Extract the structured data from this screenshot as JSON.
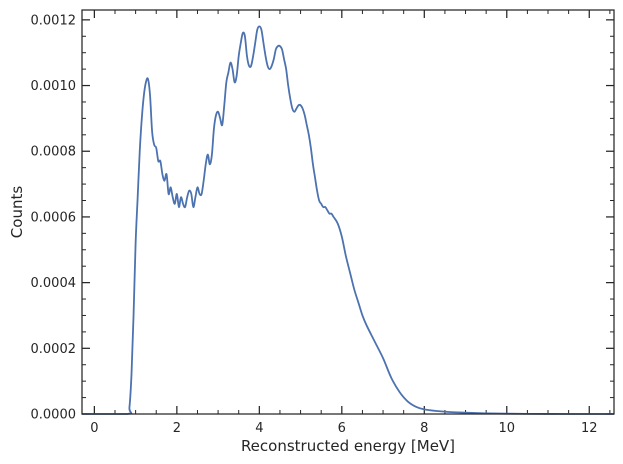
{
  "chart_data": {
    "type": "line",
    "title": "",
    "xlabel": "Reconstructed energy [MeV]",
    "ylabel": "Counts",
    "xlim": [
      -0.3,
      12.6
    ],
    "ylim": [
      0,
      0.00123
    ],
    "xticks": [
      0,
      2,
      4,
      6,
      8,
      10,
      12
    ],
    "xtick_labels": [
      "0",
      "2",
      "4",
      "6",
      "8",
      "10",
      "12"
    ],
    "yticks": [
      0,
      0.0002,
      0.0004,
      0.0006,
      0.0008,
      0.001,
      0.0012
    ],
    "ytick_labels": [
      "0.0000",
      "0.0002",
      "0.0004",
      "0.0006",
      "0.0008",
      "0.0010",
      "0.0012"
    ],
    "grid": false,
    "line_color": "#4c72b0",
    "series": [
      {
        "x": [
          -0.3,
          0.8,
          0.85,
          0.9,
          0.95,
          1.0,
          1.05,
          1.1,
          1.15,
          1.2,
          1.25,
          1.3,
          1.35,
          1.4,
          1.45,
          1.5,
          1.55,
          1.6,
          1.65,
          1.7,
          1.75,
          1.8,
          1.85,
          1.9,
          1.95,
          2.0,
          2.05,
          2.1,
          2.15,
          2.2,
          2.25,
          2.3,
          2.35,
          2.4,
          2.45,
          2.5,
          2.55,
          2.6,
          2.65,
          2.7,
          2.75,
          2.8,
          2.85,
          2.9,
          2.95,
          3.0,
          3.05,
          3.1,
          3.15,
          3.2,
          3.25,
          3.3,
          3.35,
          3.4,
          3.45,
          3.5,
          3.55,
          3.6,
          3.65,
          3.7,
          3.75,
          3.8,
          3.85,
          3.9,
          3.95,
          4.0,
          4.05,
          4.1,
          4.15,
          4.2,
          4.25,
          4.3,
          4.35,
          4.4,
          4.45,
          4.5,
          4.55,
          4.6,
          4.65,
          4.7,
          4.75,
          4.8,
          4.85,
          4.9,
          4.95,
          5.0,
          5.05,
          5.1,
          5.15,
          5.2,
          5.25,
          5.3,
          5.35,
          5.4,
          5.45,
          5.5,
          5.55,
          5.6,
          5.65,
          5.7,
          5.75,
          5.8,
          5.9,
          6.0,
          6.1,
          6.2,
          6.3,
          6.4,
          6.5,
          6.6,
          6.8,
          7.0,
          7.2,
          7.4,
          7.6,
          7.8,
          8.0,
          8.3,
          8.6,
          9.0,
          9.5,
          10.0,
          10.5,
          11.0,
          11.5,
          12.0,
          12.6
        ],
        "y": [
          0,
          0,
          2e-05,
          0.00012,
          0.0003,
          0.00052,
          0.00066,
          0.0008,
          0.0009,
          0.00097,
          0.00101,
          0.00102,
          0.00097,
          0.00086,
          0.00082,
          0.00081,
          0.00077,
          0.00077,
          0.00073,
          0.00071,
          0.00073,
          0.00067,
          0.00069,
          0.00066,
          0.00064,
          0.00067,
          0.00063,
          0.00066,
          0.00064,
          0.00063,
          0.00066,
          0.00068,
          0.00067,
          0.00063,
          0.00066,
          0.00069,
          0.00067,
          0.00067,
          0.00071,
          0.00076,
          0.00079,
          0.00076,
          0.00079,
          0.00087,
          0.00091,
          0.00092,
          0.0009,
          0.00088,
          0.00094,
          0.00101,
          0.00104,
          0.00107,
          0.00105,
          0.00101,
          0.00103,
          0.00109,
          0.00113,
          0.00116,
          0.00115,
          0.00109,
          0.00106,
          0.00106,
          0.00109,
          0.00113,
          0.00117,
          0.00118,
          0.00117,
          0.00113,
          0.00109,
          0.00106,
          0.00105,
          0.00106,
          0.00108,
          0.00111,
          0.00112,
          0.00112,
          0.00111,
          0.00108,
          0.00105,
          0.001,
          0.00096,
          0.00093,
          0.00092,
          0.00093,
          0.00094,
          0.00094,
          0.00093,
          0.00091,
          0.00088,
          0.00085,
          0.00081,
          0.00076,
          0.00072,
          0.00068,
          0.00065,
          0.00064,
          0.00063,
          0.00063,
          0.00062,
          0.00061,
          0.00061,
          0.0006,
          0.00058,
          0.00054,
          0.00048,
          0.00043,
          0.00038,
          0.00034,
          0.0003,
          0.00027,
          0.00022,
          0.00017,
          0.00011,
          6.7e-05,
          3.8e-05,
          2.2e-05,
          1.4e-05,
          9e-06,
          6e-06,
          4e-06,
          2e-06,
          1e-06,
          5e-07,
          2e-07,
          0,
          0,
          0
        ]
      }
    ]
  }
}
